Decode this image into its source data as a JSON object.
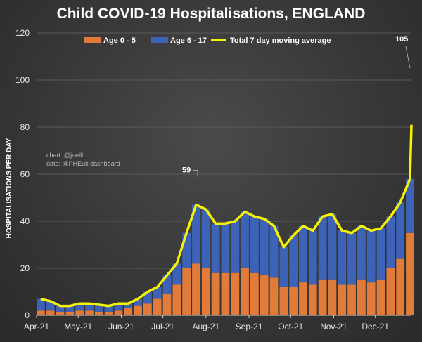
{
  "chart_data": {
    "type": "bar",
    "title": "Child COVID-19 Hospitalisations, ENGLAND",
    "ylabel": "HOSPITALISATIONS PER DAY",
    "xlabel": "",
    "ylim": [
      0,
      120
    ],
    "yticks": [
      0,
      20,
      40,
      60,
      80,
      100,
      120
    ],
    "xlim": [
      "2021-04-01",
      "2021-12-27"
    ],
    "xticks": [
      {
        "date": "2021-04-01",
        "label": "Apr-21"
      },
      {
        "date": "2021-05-01",
        "label": "May-21"
      },
      {
        "date": "2021-06-01",
        "label": "Jun-21"
      },
      {
        "date": "2021-07-01",
        "label": "Jul-21"
      },
      {
        "date": "2021-08-01",
        "label": "Aug-21"
      },
      {
        "date": "2021-09-01",
        "label": "Sep-21"
      },
      {
        "date": "2021-10-01",
        "label": "Oct-21"
      },
      {
        "date": "2021-11-01",
        "label": "Nov-21"
      },
      {
        "date": "2021-12-01",
        "label": "Dec-21"
      }
    ],
    "grid": true,
    "legend_placement": "top",
    "stacked": true,
    "x": [
      "2021-04-01",
      "2021-04-08",
      "2021-04-15",
      "2021-04-22",
      "2021-04-29",
      "2021-05-06",
      "2021-05-13",
      "2021-05-20",
      "2021-05-27",
      "2021-06-03",
      "2021-06-10",
      "2021-06-17",
      "2021-06-24",
      "2021-07-01",
      "2021-07-08",
      "2021-07-15",
      "2021-07-22",
      "2021-07-29",
      "2021-08-05",
      "2021-08-12",
      "2021-08-19",
      "2021-08-26",
      "2021-09-02",
      "2021-09-09",
      "2021-09-16",
      "2021-09-23",
      "2021-09-30",
      "2021-10-07",
      "2021-10-14",
      "2021-10-21",
      "2021-10-28",
      "2021-11-04",
      "2021-11-11",
      "2021-11-18",
      "2021-11-25",
      "2021-12-02",
      "2021-12-09",
      "2021-12-16",
      "2021-12-23"
    ],
    "series": [
      {
        "name": "Age 0 - 5",
        "color": "#e07b39",
        "values": [
          2,
          2,
          1.5,
          1.5,
          2,
          2,
          1.5,
          1.5,
          2,
          3,
          4,
          5,
          7,
          9,
          13,
          20,
          22,
          20,
          18,
          18,
          18,
          20,
          18,
          17,
          16,
          12,
          12,
          14,
          13,
          15,
          15,
          13,
          13,
          15,
          14,
          15,
          20,
          24,
          35
        ]
      },
      {
        "name": "Age 6 - 17",
        "color": "#3d63b8",
        "values": [
          5,
          4,
          2.5,
          2.5,
          3,
          3,
          3,
          2.5,
          3,
          2,
          3,
          5,
          5,
          8,
          9,
          15,
          25,
          25,
          21,
          21,
          22,
          24,
          24,
          24,
          22,
          17,
          22,
          24,
          23,
          27,
          28,
          23,
          22,
          23,
          22,
          22,
          22,
          24,
          23
        ]
      },
      {
        "name": "Total 7 day moving average",
        "color": "#f5f500",
        "type": "line",
        "values": [
          7,
          6,
          4,
          4,
          5,
          5,
          4.5,
          4,
          5,
          5,
          7,
          10,
          12,
          17,
          22,
          35,
          47,
          45,
          39,
          39,
          40,
          44,
          42,
          41,
          38,
          29,
          34,
          38,
          36,
          42,
          43,
          36,
          35,
          38,
          36,
          37,
          42,
          48,
          58
        ],
        "end_value": 81
      }
    ],
    "annotations": [
      {
        "date": "2021-07-26",
        "value": 59,
        "label": "59"
      },
      {
        "date": "2021-12-27",
        "value": 105,
        "label": "105"
      }
    ],
    "credits": [
      "chart: @jneill",
      "data: @PHEuk dashboard"
    ]
  }
}
